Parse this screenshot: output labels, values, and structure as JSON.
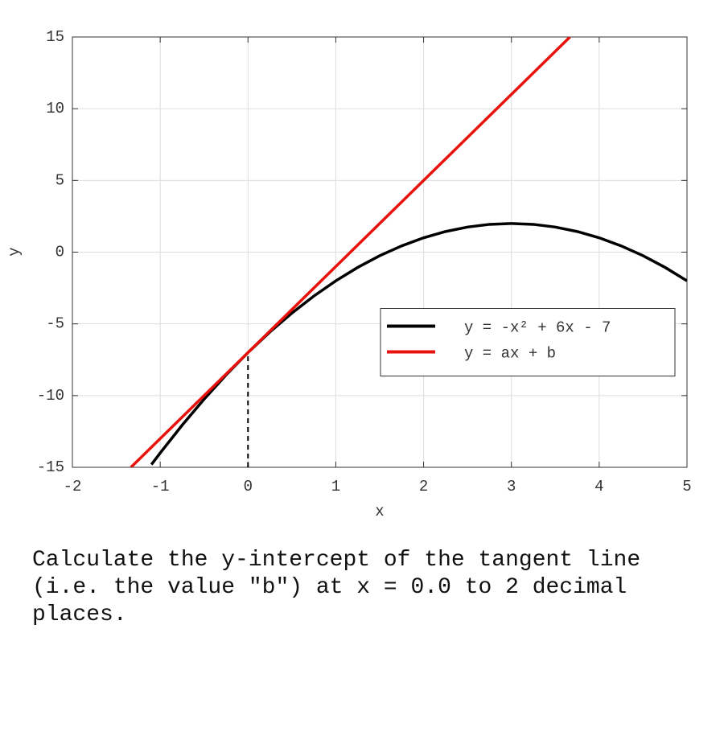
{
  "chart_data": {
    "type": "line",
    "xlabel": "x",
    "ylabel": "y",
    "xlim": [
      -2,
      5
    ],
    "ylim": [
      -15,
      15
    ],
    "xticks": [
      -2,
      -1,
      0,
      1,
      2,
      3,
      4,
      5
    ],
    "yticks": [
      -15,
      -10,
      -5,
      0,
      5,
      10,
      15
    ],
    "grid": true,
    "legend": "center right",
    "series": [
      {
        "name": "y = -x² + 6x - 7",
        "color": "#000000",
        "x": [
          -1.1,
          -1,
          -0.75,
          -0.5,
          -0.25,
          0,
          0.25,
          0.5,
          0.75,
          1,
          1.25,
          1.5,
          1.75,
          2,
          2.25,
          2.5,
          2.75,
          3,
          3.25,
          3.5,
          3.75,
          4,
          4.25,
          4.5,
          4.75,
          5
        ],
        "values": [
          -14.81,
          -14,
          -12.0625,
          -10.25,
          -8.5625,
          -7,
          -5.5625,
          -4.25,
          -3.0625,
          -2,
          -1.0625,
          -0.25,
          0.4375,
          1,
          1.4375,
          1.75,
          1.9375,
          2,
          1.9375,
          1.75,
          1.4375,
          1,
          0.4375,
          -0.25,
          -1.0625,
          -2
        ]
      },
      {
        "name": "y = ax + b",
        "color": "#e8120c",
        "x": [
          -1.3333,
          3.6667
        ],
        "values": [
          -15,
          15
        ]
      }
    ],
    "guide": {
      "x": [
        0,
        0
      ],
      "values": [
        -15,
        -7
      ],
      "color": "#000000",
      "dashed": true
    }
  },
  "question": "Calculate the y-intercept of the tangent line (i.e. the value \"b\") at x = 0.0 to 2 decimal places."
}
